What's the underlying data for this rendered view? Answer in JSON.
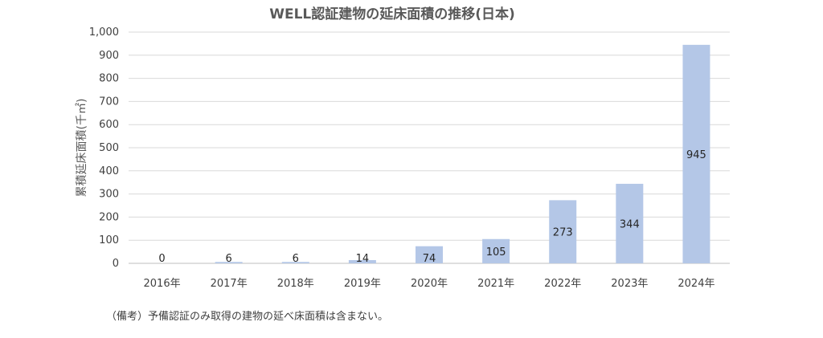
{
  "chart_data": {
    "type": "bar",
    "title": "WELL認証建物の延床面積の推移(日本)",
    "ylabel": "累積延床面積(千㎡)",
    "xlabel": "",
    "categories": [
      "2016年",
      "2017年",
      "2018年",
      "2019年",
      "2020年",
      "2021年",
      "2022年",
      "2023年",
      "2024年"
    ],
    "values": [
      0,
      6,
      6,
      14,
      74,
      105,
      273,
      344,
      945
    ],
    "data_labels": [
      "0",
      "6",
      "6",
      "14",
      "74",
      "105",
      "273",
      "344",
      "945"
    ],
    "ylim": [
      0,
      1000
    ],
    "yticks": [
      "0",
      "100",
      "200",
      "300",
      "400",
      "500",
      "600",
      "700",
      "800",
      "900",
      "1,000"
    ],
    "grid": true,
    "legend": "none",
    "bar_color": "#b4c7e7"
  },
  "note": "（備考）予備認証のみ取得の建物の延べ床面積は含まない。"
}
